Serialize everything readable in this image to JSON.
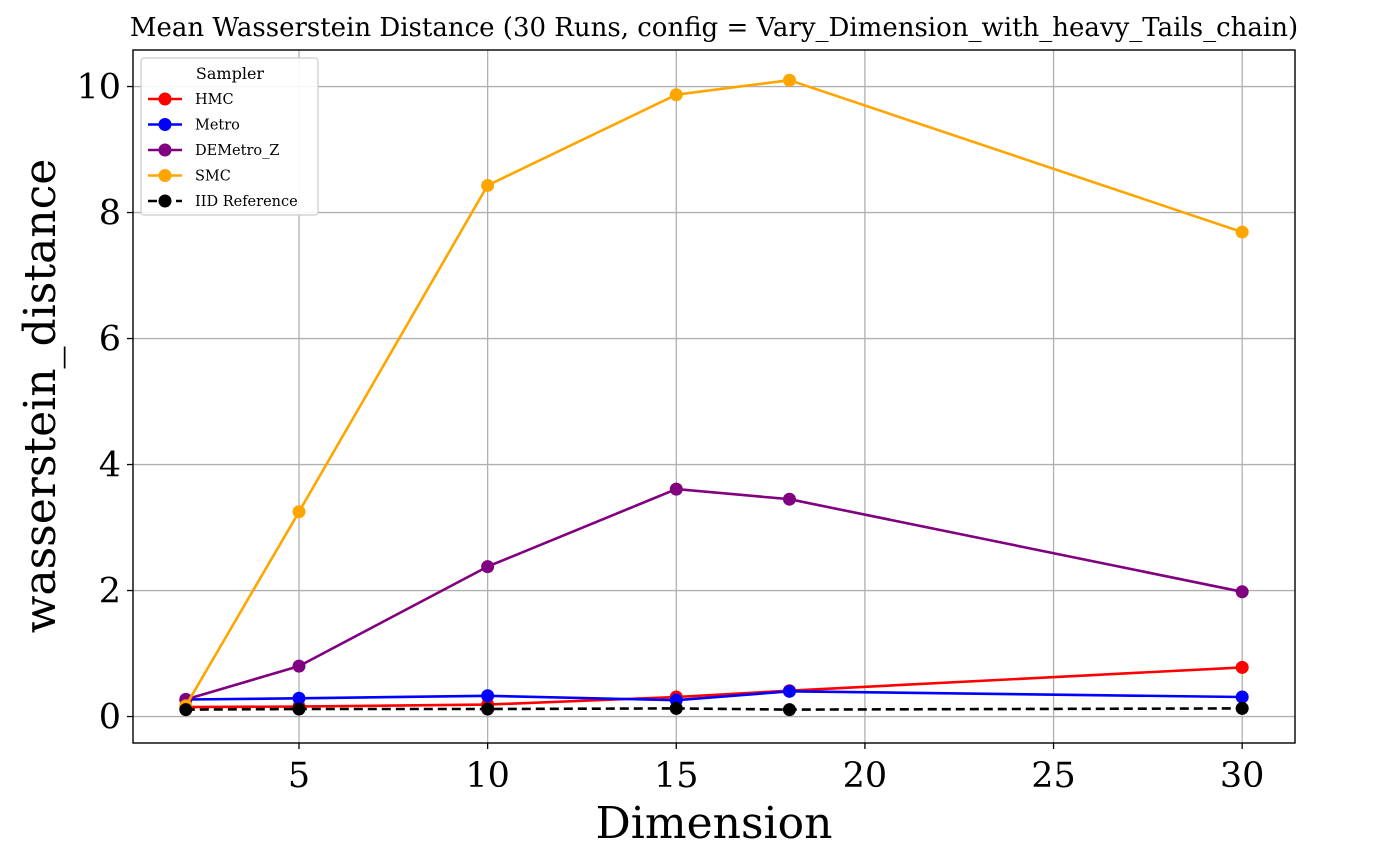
{
  "chart_data": {
    "type": "line",
    "title": "Mean Wasserstein Distance (30 Runs, config = Vary_Dimension_with_heavy_Tails_chain)",
    "xlabel": "Dimension",
    "ylabel": "wasserstein_distance",
    "xlim": [
      0.6,
      31.4
    ],
    "ylim": [
      -0.42,
      10.58
    ],
    "xticks": [
      5,
      10,
      15,
      20,
      25,
      30
    ],
    "yticks": [
      0,
      2,
      4,
      6,
      8,
      10
    ],
    "grid": true,
    "legend": {
      "title": "Sampler",
      "position": "top-left"
    },
    "x": [
      2,
      5,
      10,
      15,
      18,
      30
    ],
    "series": [
      {
        "name": "HMC",
        "color": "#ff0000",
        "dashed": false,
        "values": [
          0.15,
          0.16,
          0.19,
          0.31,
          0.41,
          0.78
        ]
      },
      {
        "name": "Metro",
        "color": "#0000ff",
        "dashed": false,
        "values": [
          0.27,
          0.29,
          0.33,
          0.26,
          0.4,
          0.31
        ]
      },
      {
        "name": "DEMetro_Z",
        "color": "#800080",
        "dashed": false,
        "values": [
          0.27,
          0.8,
          2.38,
          3.61,
          3.45,
          1.98
        ]
      },
      {
        "name": "SMC",
        "color": "#ffa500",
        "dashed": false,
        "values": [
          0.17,
          3.25,
          8.43,
          9.87,
          10.1,
          7.69
        ]
      },
      {
        "name": "IID Reference",
        "color": "#000000",
        "dashed": true,
        "values": [
          0.11,
          0.12,
          0.12,
          0.13,
          0.11,
          0.13
        ]
      }
    ]
  }
}
